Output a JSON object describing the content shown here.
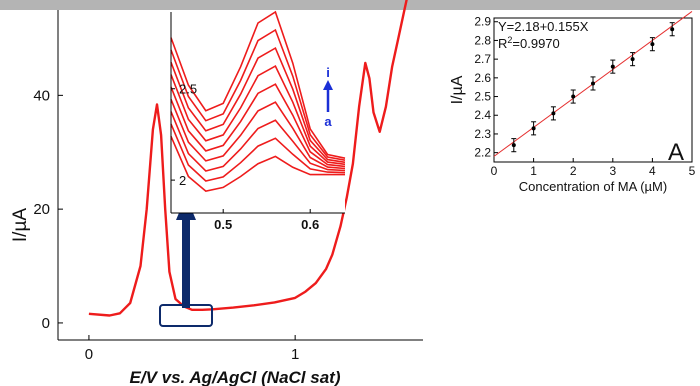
{
  "chart_data": [
    {
      "type": "line",
      "panel": "main voltammogram",
      "xlabel": "E/V vs. Ag/AgCl (NaCl sat)",
      "ylabel": "I/µA",
      "xlim": [
        -0.15,
        1.62
      ],
      "ylim": [
        -3,
        55
      ],
      "x_ticks": [
        0,
        1
      ],
      "x_tick_labels": [
        "0",
        "1"
      ],
      "y_ticks": [
        0,
        20,
        40
      ],
      "y_tick_labels": [
        "0",
        "20",
        "40"
      ],
      "grid": false,
      "legend": "none",
      "series": [
        {
          "color": "#ee1c1c",
          "x": [
            0.0,
            0.1,
            0.15,
            0.2,
            0.25,
            0.28,
            0.31,
            0.33,
            0.35,
            0.37,
            0.39,
            0.42,
            0.46,
            0.5,
            0.55,
            0.6,
            0.7,
            0.8,
            0.9,
            1.0,
            1.05,
            1.1,
            1.15,
            1.18,
            1.2,
            1.22,
            1.25,
            1.28,
            1.31,
            1.34,
            1.36,
            1.38,
            1.41,
            1.44,
            1.47,
            1.5,
            1.53,
            1.56,
            1.59
          ],
          "y": [
            1.6,
            1.3,
            1.7,
            3.5,
            10,
            20,
            34,
            38.4,
            33,
            20,
            9,
            4.2,
            2.9,
            2.3,
            2.3,
            2.4,
            2.7,
            3.1,
            3.6,
            4.4,
            5.5,
            7,
            9.5,
            12,
            14.5,
            17,
            22,
            28,
            38,
            45.7,
            43,
            37,
            33.6,
            38,
            45,
            50,
            55,
            60,
            65
          ]
        }
      ]
    },
    {
      "type": "line",
      "panel": "inset zoom",
      "xlim": [
        0.44,
        0.64
      ],
      "ylim": [
        1.82,
        2.92
      ],
      "x_ticks": [
        0.5,
        0.6
      ],
      "x_tick_labels": [
        "0.5",
        "0.6"
      ],
      "y_ticks": [
        2,
        2.5
      ],
      "y_tick_labels": [
        "2",
        "2.5"
      ],
      "curve_labels": [
        "a",
        "i"
      ],
      "peak_x": 0.553,
      "curve_count": 9,
      "series_shape": {
        "x": [
          0.44,
          0.46,
          0.48,
          0.5,
          0.52,
          0.54,
          0.56,
          0.58,
          0.6,
          0.62,
          0.64
        ],
        "base_y": [
          2.24,
          2.02,
          1.94,
          1.96,
          2.02,
          2.09,
          2.13,
          2.07,
          2.03,
          2.03,
          2.03
        ],
        "top_y": [
          2.78,
          2.52,
          2.38,
          2.42,
          2.62,
          2.86,
          2.92,
          2.64,
          2.28,
          2.14,
          2.12
        ]
      }
    },
    {
      "type": "scatter",
      "panel": "calibration",
      "xlabel": "Concentration of MA (µM)",
      "ylabel": "I/µA",
      "xlim": [
        0,
        5
      ],
      "ylim": [
        2.15,
        2.92
      ],
      "x_ticks": [
        0,
        1,
        2,
        3,
        4,
        5
      ],
      "x_tick_labels": [
        "0",
        "1",
        "2",
        "3",
        "4",
        "5"
      ],
      "y_ticks": [
        2.2,
        2.3,
        2.4,
        2.5,
        2.6,
        2.7,
        2.8,
        2.9
      ],
      "y_tick_labels": [
        "2.2",
        "2.3",
        "2.4",
        "2.5",
        "2.6",
        "2.7",
        "2.8",
        "2.9"
      ],
      "x": [
        0.5,
        1.0,
        1.5,
        2.0,
        2.5,
        3.0,
        3.5,
        4.0,
        4.5
      ],
      "y": [
        2.24,
        2.33,
        2.41,
        2.5,
        2.57,
        2.66,
        2.7,
        2.78,
        2.86
      ],
      "error": 0.035,
      "fit_line": {
        "intercept": 2.18,
        "slope": 0.155,
        "x_range": [
          0,
          5
        ]
      },
      "equation_text": "Y=2.18+0.155X",
      "r2_prefix": "R",
      "r2_sup": "2",
      "r2_value": "=0.9970",
      "panel_label": "A",
      "marker_color": "#000000",
      "fit_color": "#e53030"
    }
  ]
}
